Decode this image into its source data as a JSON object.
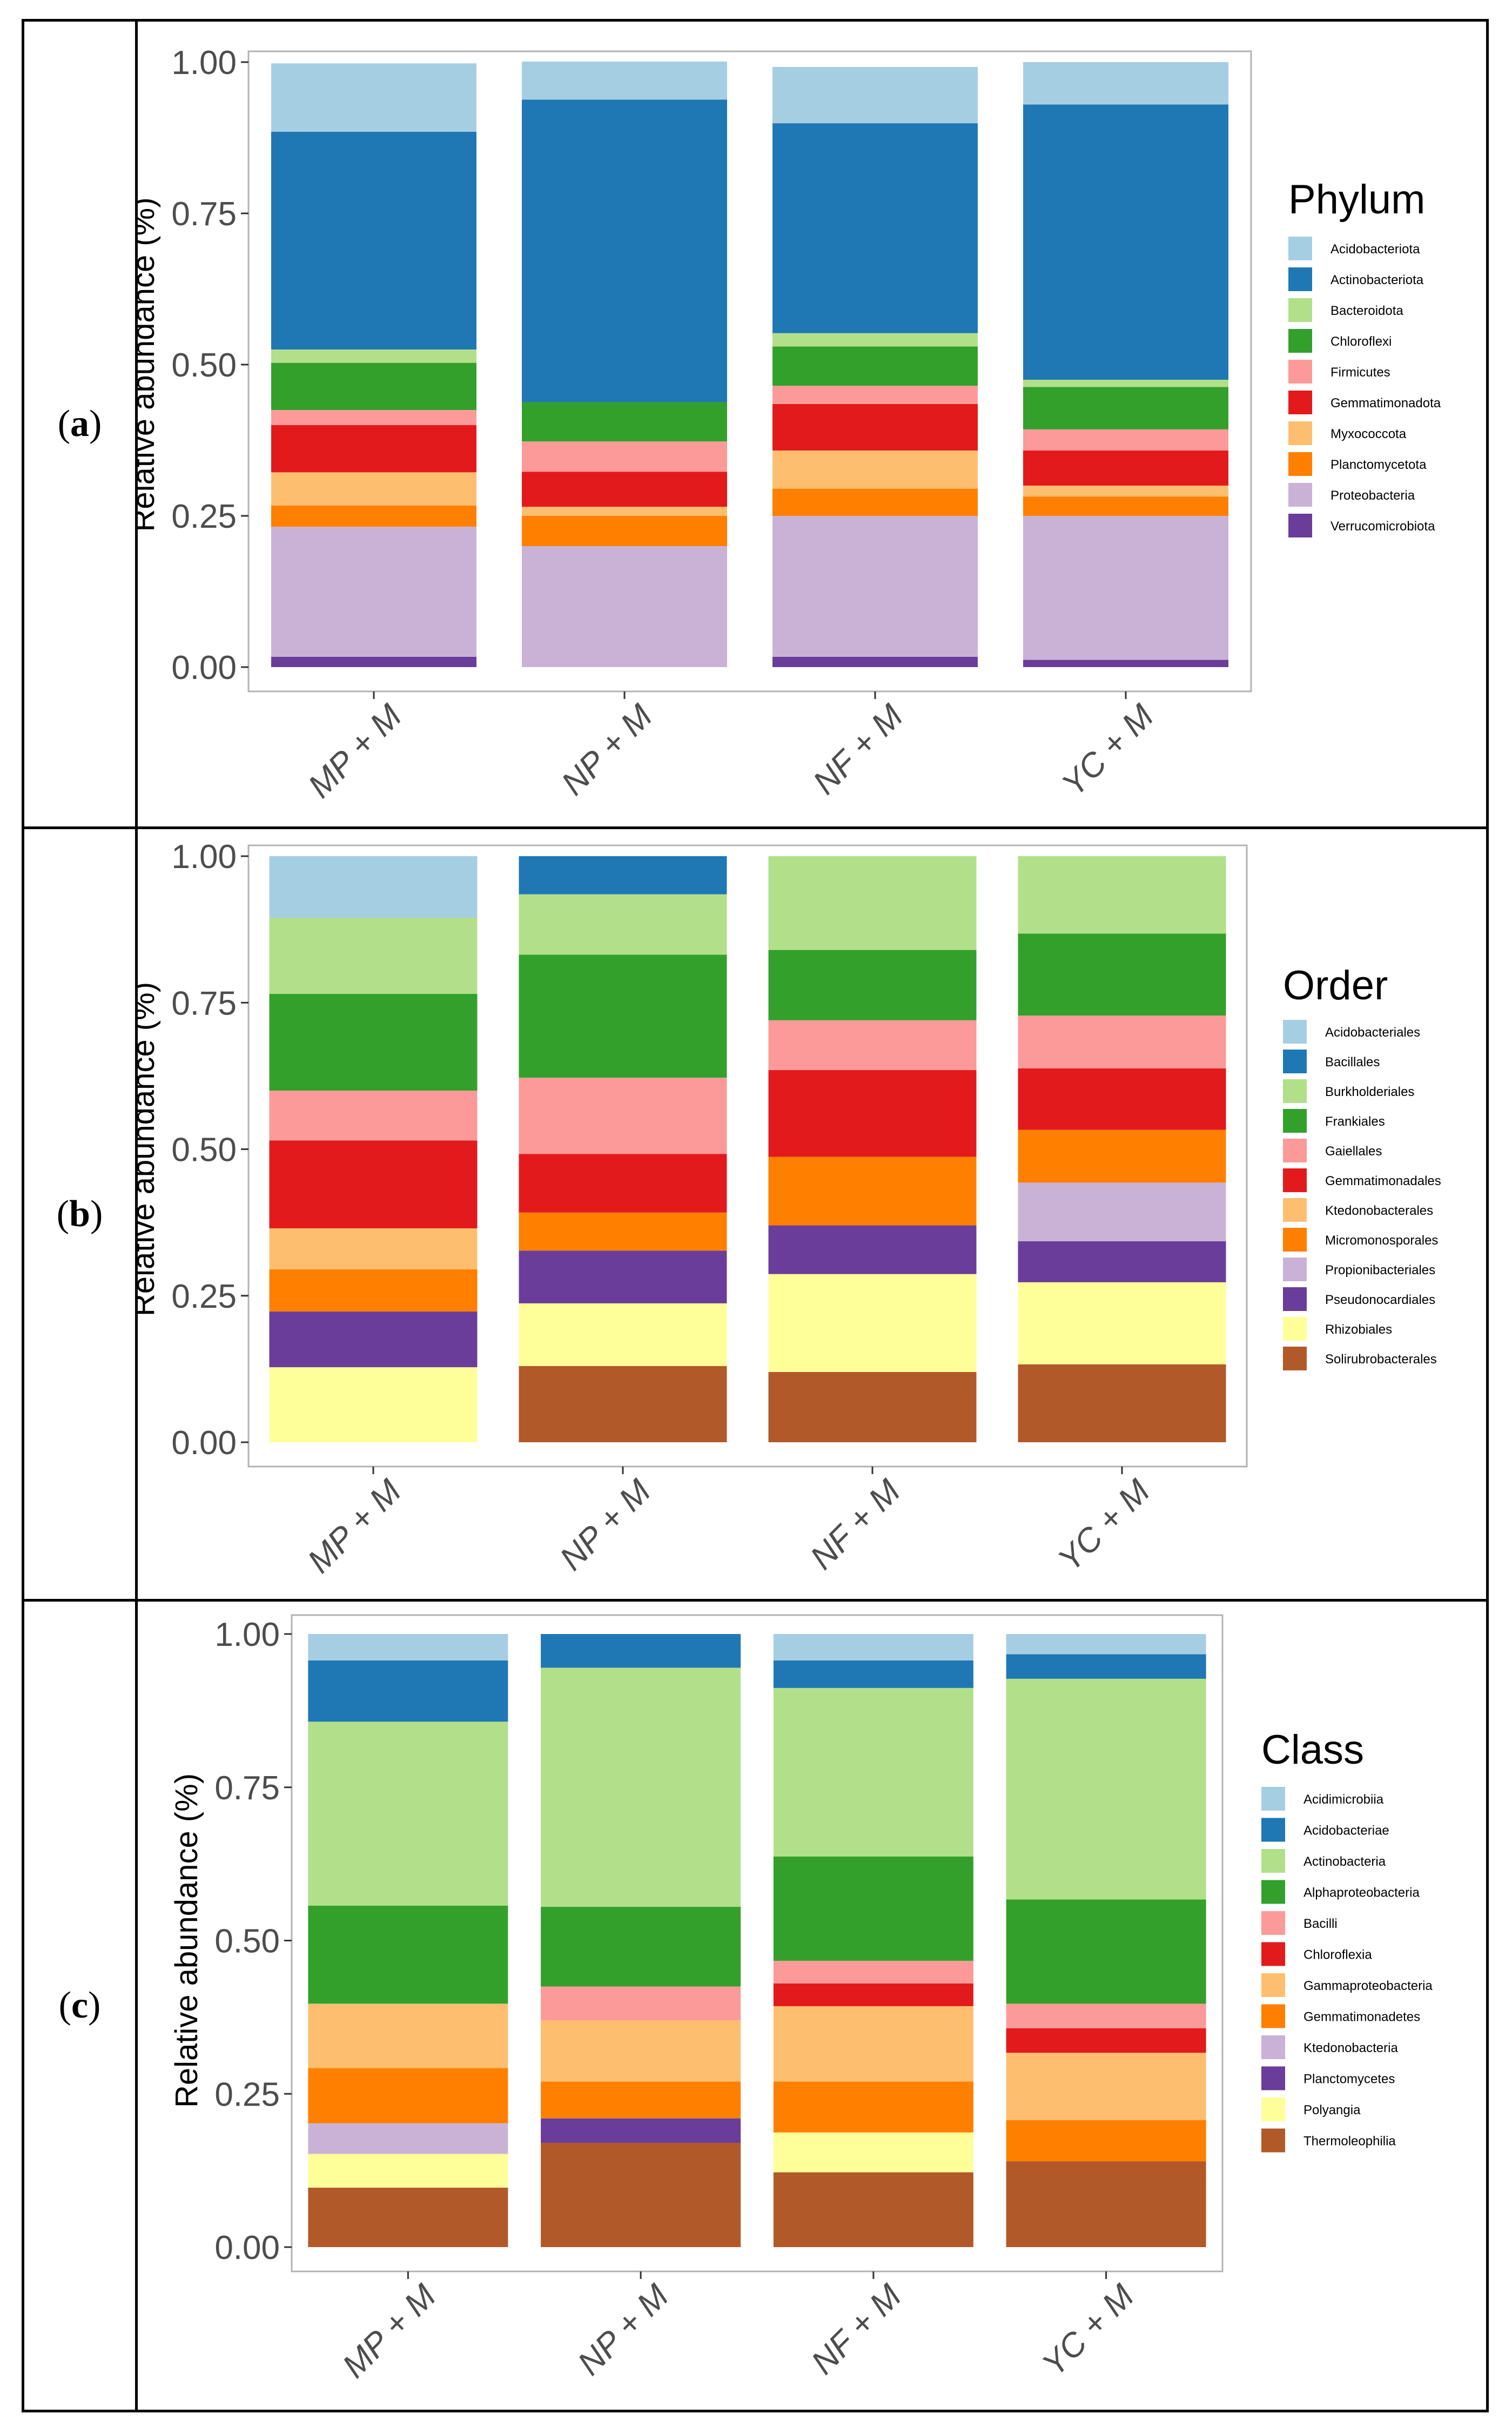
{
  "panels": [
    {
      "label_open": "(",
      "label_letter": "a",
      "label_close": ")"
    },
    {
      "label_open": "(",
      "label_letter": "b",
      "label_close": ")"
    },
    {
      "label_open": "(",
      "label_letter": "c",
      "label_close": ")"
    }
  ],
  "chart_data": [
    {
      "type": "bar",
      "stacked": true,
      "ylabel": "Relative abundance (%)",
      "ylim": [
        0,
        1
      ],
      "yticks": [
        "0.00",
        "0.25",
        "0.50",
        "0.75",
        "1.00"
      ],
      "categories": [
        "MP + M",
        "NP + M",
        "NF + M",
        "YC + M"
      ],
      "legend_title": "Phylum",
      "legend_position": "right",
      "series": [
        {
          "name": "Acidobacteriota",
          "color": "#a6cee3",
          "values": [
            0.113,
            0.063,
            0.093,
            0.07
          ]
        },
        {
          "name": "Actinobacteriota",
          "color": "#1f78b4",
          "values": [
            0.36,
            0.5,
            0.347,
            0.455
          ]
        },
        {
          "name": "Bacteroidota",
          "color": "#b2df8a",
          "values": [
            0.022,
            0,
            0.022,
            0.012
          ]
        },
        {
          "name": "Chloroflexi",
          "color": "#33a02c",
          "values": [
            0.078,
            0.065,
            0.065,
            0.07
          ]
        },
        {
          "name": "Firmicutes",
          "color": "#fb9a99",
          "values": [
            0.025,
            0.05,
            0.03,
            0.035
          ]
        },
        {
          "name": "Gemmatimonadota",
          "color": "#e31a1c",
          "values": [
            0.078,
            0.058,
            0.077,
            0.058
          ]
        },
        {
          "name": "Myxococcota",
          "color": "#fdbf6f",
          "values": [
            0.055,
            0.015,
            0.063,
            0.018
          ]
        },
        {
          "name": "Planctomycetota",
          "color": "#ff7f00",
          "values": [
            0.035,
            0.05,
            0.045,
            0.032
          ]
        },
        {
          "name": "Proteobacteria",
          "color": "#cab2d6",
          "values": [
            0.215,
            0.2,
            0.233,
            0.238
          ]
        },
        {
          "name": "Verrucomicrobiota",
          "color": "#6a3d9a",
          "values": [
            0.017,
            0,
            0.017,
            0.012
          ]
        }
      ]
    },
    {
      "type": "bar",
      "stacked": true,
      "ylabel": "Relative abundance (%)",
      "ylim": [
        0,
        1
      ],
      "yticks": [
        "0.00",
        "0.25",
        "0.50",
        "0.75",
        "1.00"
      ],
      "categories": [
        "MP + M",
        "NP + M",
        "NF + M",
        "YC + M"
      ],
      "legend_title": "Order",
      "legend_position": "right",
      "series": [
        {
          "name": "Acidobacteriales",
          "color": "#a6cee3",
          "values": [
            0.105,
            0,
            0,
            0
          ]
        },
        {
          "name": "Bacillales",
          "color": "#1f78b4",
          "values": [
            0,
            0.065,
            0,
            0
          ]
        },
        {
          "name": "Burkholderiales",
          "color": "#b2df8a",
          "values": [
            0.13,
            0.103,
            0.16,
            0.132
          ]
        },
        {
          "name": "Frankiales",
          "color": "#33a02c",
          "values": [
            0.165,
            0.21,
            0.12,
            0.14
          ]
        },
        {
          "name": "Gaiellales",
          "color": "#fb9a99",
          "values": [
            0.085,
            0.13,
            0.085,
            0.09
          ]
        },
        {
          "name": "Gemmatimonadales",
          "color": "#e31a1c",
          "values": [
            0.15,
            0.1,
            0.148,
            0.105
          ]
        },
        {
          "name": "Ktedonobacterales",
          "color": "#fdbf6f",
          "values": [
            0.07,
            0,
            0,
            0
          ]
        },
        {
          "name": "Micromonosporales",
          "color": "#ff7f00",
          "values": [
            0.072,
            0.065,
            0.117,
            0.09
          ]
        },
        {
          "name": "Propionibacteriales",
          "color": "#cab2d6",
          "values": [
            0,
            0,
            0,
            0.1
          ]
        },
        {
          "name": "Pseudonocardiales",
          "color": "#6a3d9a",
          "values": [
            0.095,
            0.09,
            0.083,
            0.07
          ]
        },
        {
          "name": "Rhizobiales",
          "color": "#ffff99",
          "values": [
            0.128,
            0.107,
            0.167,
            0.14
          ]
        },
        {
          "name": "Solirubrobacterales",
          "color": "#b15928",
          "values": [
            0,
            0.13,
            0.12,
            0.133
          ]
        }
      ]
    },
    {
      "type": "bar",
      "stacked": true,
      "ylabel": "Relative abundance (%)",
      "ylim": [
        0,
        1
      ],
      "yticks": [
        "0.00",
        "0.25",
        "0.50",
        "0.75",
        "1.00"
      ],
      "categories": [
        "MP + M",
        "NP + M",
        "NF + M",
        "YC + M"
      ],
      "legend_title": "Class",
      "legend_position": "right",
      "series": [
        {
          "name": "Acidimicrobiia",
          "color": "#a6cee3",
          "values": [
            0.043,
            0,
            0.043,
            0.033
          ]
        },
        {
          "name": "Acidobacteriae",
          "color": "#1f78b4",
          "values": [
            0.1,
            0.055,
            0.045,
            0.04
          ]
        },
        {
          "name": "Actinobacteria",
          "color": "#b2df8a",
          "values": [
            0.3,
            0.39,
            0.275,
            0.36
          ]
        },
        {
          "name": "Alphaproteobacteria",
          "color": "#33a02c",
          "values": [
            0.16,
            0.13,
            0.17,
            0.17
          ]
        },
        {
          "name": "Bacilli",
          "color": "#fb9a99",
          "values": [
            0,
            0.055,
            0.037,
            0.04
          ]
        },
        {
          "name": "Chloroflexia",
          "color": "#e31a1c",
          "values": [
            0,
            0,
            0.037,
            0.04
          ]
        },
        {
          "name": "Gammaproteobacteria",
          "color": "#fdbf6f",
          "values": [
            0.105,
            0.1,
            0.123,
            0.11
          ]
        },
        {
          "name": "Gemmatimonadetes",
          "color": "#ff7f00",
          "values": [
            0.09,
            0.06,
            0.083,
            0.067
          ]
        },
        {
          "name": "Ktedonobacteria",
          "color": "#cab2d6",
          "values": [
            0.05,
            0,
            0,
            0
          ]
        },
        {
          "name": "Planctomycetes",
          "color": "#6a3d9a",
          "values": [
            0,
            0.04,
            0,
            0
          ]
        },
        {
          "name": "Polyangia",
          "color": "#ffff99",
          "values": [
            0.055,
            0,
            0.065,
            0
          ]
        },
        {
          "name": "Thermoleophilia",
          "color": "#b15928",
          "values": [
            0.097,
            0.17,
            0.122,
            0.14
          ]
        }
      ]
    }
  ]
}
